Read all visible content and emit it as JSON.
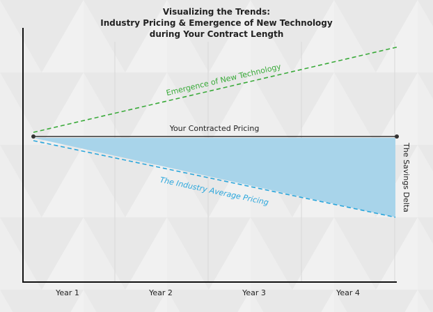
{
  "title": [
    "Visualizing the Trends:",
    "Industry Pricing & Emergence of New Technology",
    "during Your Contract Length"
  ],
  "lines": {
    "technology": "Emergence of New Technology",
    "contracted": "Your Contracted Pricing",
    "industry": "The Industry Average Pricing"
  },
  "savings_label": "The Savings Delta",
  "years": [
    "Year 1",
    "Year 2",
    "Year 3",
    "Year 4"
  ]
}
